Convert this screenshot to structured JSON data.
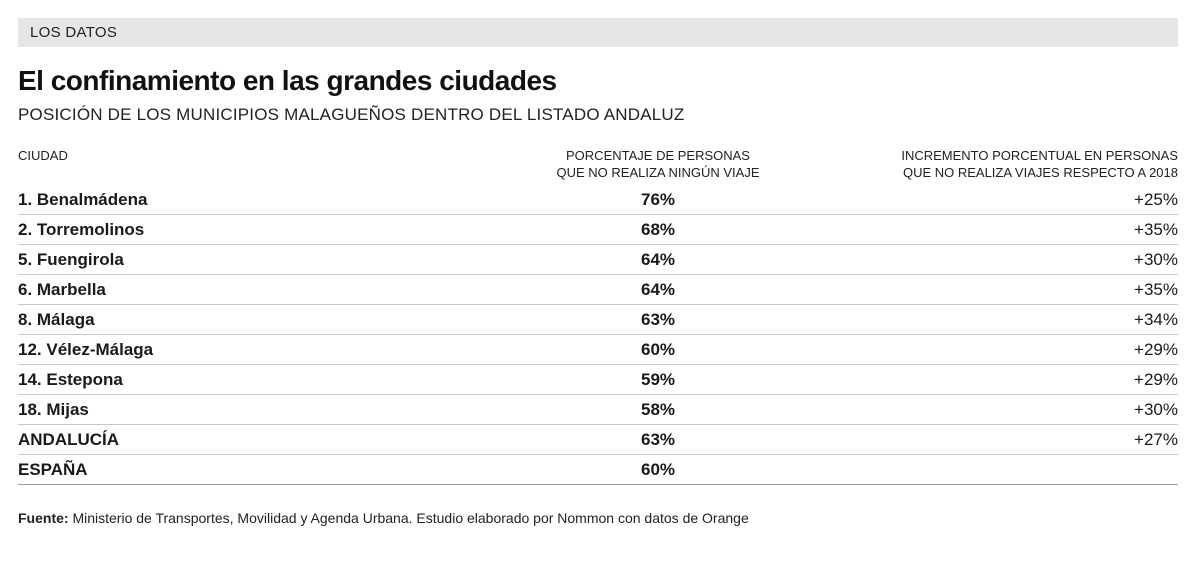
{
  "section_label": "LOS DATOS",
  "title": "El confinamiento en las grandes ciudades",
  "subtitle": "POSICIÓN DE LOS MUNICIPIOS MALAGUEÑOS DENTRO DEL LISTADO ANDALUZ",
  "headers": {
    "city": "CIUDAD",
    "pct_line1": "PORCENTAJE DE PERSONAS",
    "pct_line2": "QUE NO REALIZA NINGÚN VIAJE",
    "inc_line1": "INCREMENTO PORCENTUAL EN PERSONAS",
    "inc_line2": "QUE NO REALIZA VIAJES RESPECTO A 2018"
  },
  "footer": {
    "label": "Fuente:",
    "text": " Ministerio de Transportes, Movilidad y Agenda Urbana. Estudio elaborado por Nommon con datos de Orange"
  },
  "chart_data": {
    "type": "table",
    "title": "El confinamiento en las grandes ciudades",
    "columns": [
      "CIUDAD",
      "PORCENTAJE DE PERSONAS QUE NO REALIZA NINGÚN VIAJE",
      "INCREMENTO PORCENTUAL EN PERSONAS QUE NO REALIZA VIAJES RESPECTO A 2018"
    ],
    "rows": [
      {
        "city": "1. Benalmádena",
        "pct": "76%",
        "inc": "+25%"
      },
      {
        "city": "2. Torremolinos",
        "pct": "68%",
        "inc": "+35%"
      },
      {
        "city": "5. Fuengirola",
        "pct": "64%",
        "inc": "+30%"
      },
      {
        "city": "6. Marbella",
        "pct": "64%",
        "inc": "+35%"
      },
      {
        "city": "8. Málaga",
        "pct": "63%",
        "inc": "+34%"
      },
      {
        "city": "12. Vélez-Málaga",
        "pct": "60%",
        "inc": "+29%"
      },
      {
        "city": "14. Estepona",
        "pct": "59%",
        "inc": "+29%"
      },
      {
        "city": "18. Mijas",
        "pct": "58%",
        "inc": "+30%"
      },
      {
        "city": "ANDALUCÍA",
        "pct": "63%",
        "inc": "+27%"
      },
      {
        "city": "ESPAÑA",
        "pct": "60%",
        "inc": ""
      }
    ]
  }
}
